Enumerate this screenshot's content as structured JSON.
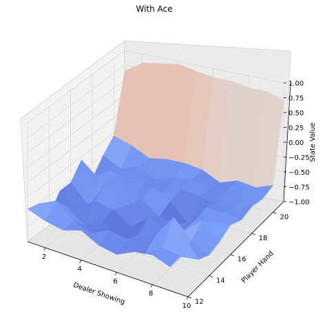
{
  "chart_data": {
    "type": "surface",
    "title": "With Ace",
    "xlabel": "Dealer Showing",
    "ylabel": "Player Hand",
    "zlabel": "State Value",
    "x_values": [
      1,
      2,
      3,
      4,
      5,
      6,
      7,
      8,
      9,
      10
    ],
    "y_values": [
      12,
      13,
      14,
      15,
      16,
      17,
      18,
      19,
      20,
      21
    ],
    "x_ticks": [
      "2",
      "4",
      "6",
      "8",
      "10"
    ],
    "y_ticks": [
      "12",
      "14",
      "16",
      "18",
      "20"
    ],
    "z_ticks": [
      "1.00",
      "0.75",
      "0.50",
      "0.25",
      "0.00",
      "−0.25",
      "−0.50",
      "−0.75",
      "−1.00"
    ],
    "zlim": [
      -1,
      1
    ],
    "colormap": "coolwarm",
    "grid": true,
    "z": [
      [
        -0.45,
        -0.55,
        -0.6,
        -0.5,
        -0.65,
        -0.7,
        -0.55,
        -0.5,
        -0.6,
        -0.1
      ],
      [
        -0.5,
        -0.35,
        -0.6,
        -0.7,
        -0.55,
        -0.6,
        -0.75,
        -0.55,
        -0.6,
        -0.55
      ],
      [
        -0.85,
        -0.6,
        -0.8,
        -0.65,
        -0.9,
        -0.7,
        -0.6,
        -0.2,
        -0.5,
        -0.65
      ],
      [
        -0.55,
        -0.75,
        -0.55,
        -0.6,
        -0.8,
        -0.55,
        -0.7,
        -0.6,
        -0.35,
        -0.6
      ],
      [
        -0.55,
        -0.85,
        -0.4,
        -0.7,
        -0.5,
        -0.7,
        -0.75,
        -0.6,
        -0.55,
        -0.5
      ],
      [
        -0.3,
        -0.55,
        -0.4,
        -0.8,
        -0.45,
        -0.6,
        -0.9,
        -0.55,
        -0.55,
        -0.6
      ],
      [
        -0.75,
        -0.55,
        -0.65,
        -0.5,
        -0.7,
        -0.55,
        -0.6,
        -0.65,
        -0.7,
        -0.55
      ],
      [
        -0.5,
        -0.65,
        -0.55,
        -0.7,
        -0.6,
        -0.55,
        -0.65,
        -0.6,
        -0.45,
        -0.6
      ],
      [
        -0.3,
        -0.4,
        -0.55,
        -0.5,
        -0.5,
        -0.55,
        -0.7,
        -0.6,
        -0.65,
        -0.55
      ],
      [
        0.65,
        0.85,
        0.9,
        0.95,
        0.9,
        0.85,
        0.85,
        0.8,
        0.8,
        0.7
      ]
    ]
  }
}
